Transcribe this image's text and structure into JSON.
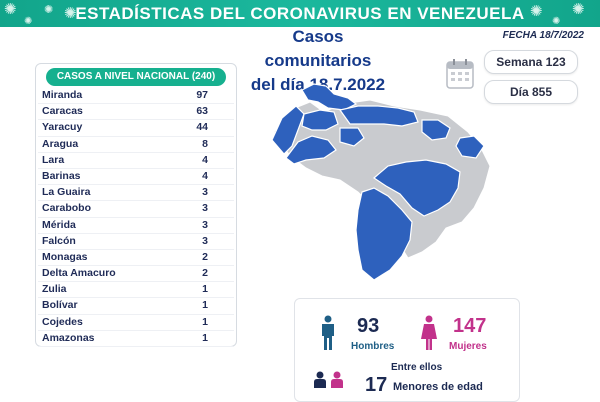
{
  "header": {
    "title": "ESTADÍSTICAS DEL CORONAVIRUS EN VENEZUELA",
    "date": "FECHA 18/7/2022"
  },
  "headline": {
    "line1": "Casos comunitarios",
    "line2": "del día 18.7.2022"
  },
  "counters": {
    "semana": "Semana 123",
    "dia": "Día 855"
  },
  "national": {
    "label": "CASOS A NIVEL NACIONAL (240)",
    "rows": [
      {
        "state": "Miranda",
        "count": "97"
      },
      {
        "state": "Caracas",
        "count": "63"
      },
      {
        "state": "Yaracuy",
        "count": "44"
      },
      {
        "state": "Aragua",
        "count": "8"
      },
      {
        "state": "Lara",
        "count": "4"
      },
      {
        "state": "Barinas",
        "count": "4"
      },
      {
        "state": "La Guaira",
        "count": "3"
      },
      {
        "state": "Carabobo",
        "count": "3"
      },
      {
        "state": "Mérida",
        "count": "3"
      },
      {
        "state": "Falcón",
        "count": "3"
      },
      {
        "state": "Monagas",
        "count": "2"
      },
      {
        "state": "Delta Amacuro",
        "count": "2"
      },
      {
        "state": "Zulia",
        "count": "1"
      },
      {
        "state": "Bolívar",
        "count": "1"
      },
      {
        "state": "Cojedes",
        "count": "1"
      },
      {
        "state": "Amazonas",
        "count": "1"
      }
    ]
  },
  "demographics": {
    "men_count": "93",
    "men_label": "Hombres",
    "women_count": "147",
    "women_label": "Mujeres",
    "among_label": "Entre ellos",
    "minors_count": "17",
    "minors_label": "Menores de edad"
  },
  "colors": {
    "banner": "#16b08f",
    "affected": "#2e61bd",
    "unaffected": "#c9cbcf",
    "men": "#1f5f86",
    "women": "#c2328b",
    "title_blue": "#163a8a"
  },
  "icons": {
    "calendar": "calendar-icon",
    "man": "man-icon",
    "woman": "woman-icon",
    "children": "children-icon"
  }
}
